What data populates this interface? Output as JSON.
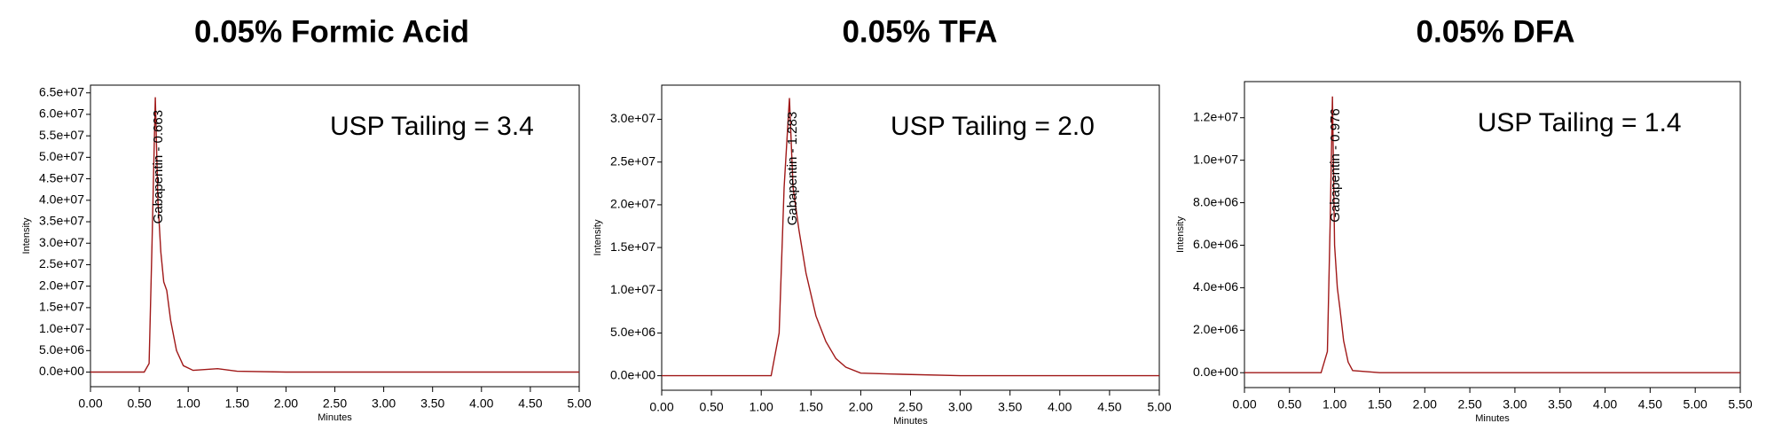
{
  "chart_data": [
    {
      "type": "line",
      "title": "0.05% Formic Acid",
      "annotation": "USP Tailing = 3.4",
      "peak_label": "Gabapentin - 0.663",
      "x_label": "Minutes",
      "y_label": "Intensity",
      "color": "#a01818",
      "x": [
        0,
        0.55,
        0.6,
        0.63,
        0.663,
        0.69,
        0.72,
        0.75,
        0.78,
        0.82,
        0.88,
        0.95,
        1.05,
        1.3,
        1.5,
        2,
        3,
        4,
        5
      ],
      "values": [
        0,
        0,
        2000000,
        30000000,
        64000000,
        40000000,
        28000000,
        21000000,
        19000000,
        12000000,
        5000000,
        1500000,
        400000,
        800000,
        200000,
        0,
        0,
        0,
        0
      ],
      "xlim": [
        0,
        5
      ],
      "ylim": [
        -3400000,
        66800000
      ],
      "xticks": [
        {
          "value": 0,
          "label": "0.00"
        },
        {
          "value": 0.5,
          "label": "0.50"
        },
        {
          "value": 1,
          "label": "1.00"
        },
        {
          "value": 1.5,
          "label": "1.50"
        },
        {
          "value": 2,
          "label": "2.00"
        },
        {
          "value": 2.5,
          "label": "2.50"
        },
        {
          "value": 3,
          "label": "3.00"
        },
        {
          "value": 3.5,
          "label": "3.50"
        },
        {
          "value": 4,
          "label": "4.00"
        },
        {
          "value": 4.5,
          "label": "4.50"
        },
        {
          "value": 5,
          "label": "5.00"
        }
      ],
      "yticks": [
        {
          "value": 0,
          "label": "0.0e+00"
        },
        {
          "value": 5000000,
          "label": "5.0e+06"
        },
        {
          "value": 10000000,
          "label": "1.0e+07"
        },
        {
          "value": 15000000,
          "label": "1.5e+07"
        },
        {
          "value": 20000000,
          "label": "2.0e+07"
        },
        {
          "value": 25000000,
          "label": "2.5e+07"
        },
        {
          "value": 30000000,
          "label": "3.0e+07"
        },
        {
          "value": 35000000,
          "label": "3.5e+07"
        },
        {
          "value": 40000000,
          "label": "4.0e+07"
        },
        {
          "value": 45000000,
          "label": "4.5e+07"
        },
        {
          "value": 50000000,
          "label": "5.0e+07"
        },
        {
          "value": 55000000,
          "label": "5.5e+07"
        },
        {
          "value": 60000000,
          "label": "6.0e+07"
        },
        {
          "value": 65000000,
          "label": "6.5e+07"
        }
      ]
    },
    {
      "type": "line",
      "title": "0.05% TFA",
      "annotation": "USP Tailing = 2.0",
      "peak_label": "Gabapentin - 1.283",
      "x_label": "Minutes",
      "y_label": "Intensity",
      "color": "#a01818",
      "x": [
        0,
        1.1,
        1.18,
        1.23,
        1.283,
        1.32,
        1.38,
        1.45,
        1.55,
        1.65,
        1.75,
        1.85,
        2,
        2.3,
        3,
        4,
        5
      ],
      "values": [
        0,
        0,
        5000000,
        22000000,
        32500000,
        22000000,
        17000000,
        12000000,
        7000000,
        4000000,
        2000000,
        1000000,
        300000,
        200000,
        0,
        0,
        0
      ],
      "xlim": [
        0,
        5
      ],
      "ylim": [
        -1700000,
        34000000
      ],
      "xticks": [
        {
          "value": 0,
          "label": "0.00"
        },
        {
          "value": 0.5,
          "label": "0.50"
        },
        {
          "value": 1,
          "label": "1.00"
        },
        {
          "value": 1.5,
          "label": "1.50"
        },
        {
          "value": 2,
          "label": "2.00"
        },
        {
          "value": 2.5,
          "label": "2.50"
        },
        {
          "value": 3,
          "label": "3.00"
        },
        {
          "value": 3.5,
          "label": "3.50"
        },
        {
          "value": 4,
          "label": "4.00"
        },
        {
          "value": 4.5,
          "label": "4.50"
        },
        {
          "value": 5,
          "label": "5.00"
        }
      ],
      "yticks": [
        {
          "value": 0,
          "label": "0.0e+00"
        },
        {
          "value": 5000000,
          "label": "5.0e+06"
        },
        {
          "value": 10000000,
          "label": "1.0e+07"
        },
        {
          "value": 15000000,
          "label": "1.5e+07"
        },
        {
          "value": 20000000,
          "label": "2.0e+07"
        },
        {
          "value": 25000000,
          "label": "2.5e+07"
        },
        {
          "value": 30000000,
          "label": "3.0e+07"
        }
      ]
    },
    {
      "type": "line",
      "title": "0.05% DFA",
      "annotation": "USP Tailing = 1.4",
      "peak_label": "Gabapentin - 0.976",
      "x_label": "Minutes",
      "y_label": "Intensity",
      "color": "#a01818",
      "x": [
        0,
        0.85,
        0.92,
        0.95,
        0.976,
        1.0,
        1.03,
        1.06,
        1.1,
        1.15,
        1.2,
        1.5,
        2,
        3,
        4,
        5,
        5.5
      ],
      "values": [
        0,
        0,
        1000000,
        7000000,
        13000000,
        6000000,
        4000000,
        3000000,
        1500000,
        500000,
        100000,
        0,
        0,
        0,
        0,
        0,
        0
      ],
      "xlim": [
        0,
        5.5
      ],
      "ylim": [
        -700000,
        13700000
      ],
      "xticks": [
        {
          "value": 0,
          "label": "0.00"
        },
        {
          "value": 0.5,
          "label": "0.50"
        },
        {
          "value": 1,
          "label": "1.00"
        },
        {
          "value": 1.5,
          "label": "1.50"
        },
        {
          "value": 2,
          "label": "2.00"
        },
        {
          "value": 2.5,
          "label": "2.50"
        },
        {
          "value": 3,
          "label": "3.00"
        },
        {
          "value": 3.5,
          "label": "3.50"
        },
        {
          "value": 4,
          "label": "4.00"
        },
        {
          "value": 4.5,
          "label": "4.50"
        },
        {
          "value": 5,
          "label": "5.00"
        },
        {
          "value": 5.5,
          "label": "5.50"
        }
      ],
      "yticks": [
        {
          "value": 0,
          "label": "0.0e+00"
        },
        {
          "value": 2000000,
          "label": "2.0e+06"
        },
        {
          "value": 4000000,
          "label": "4.0e+06"
        },
        {
          "value": 6000000,
          "label": "6.0e+06"
        },
        {
          "value": 8000000,
          "label": "8.0e+06"
        },
        {
          "value": 10000000,
          "label": "1.0e+07"
        },
        {
          "value": 12000000,
          "label": "1.2e+07"
        }
      ]
    }
  ]
}
